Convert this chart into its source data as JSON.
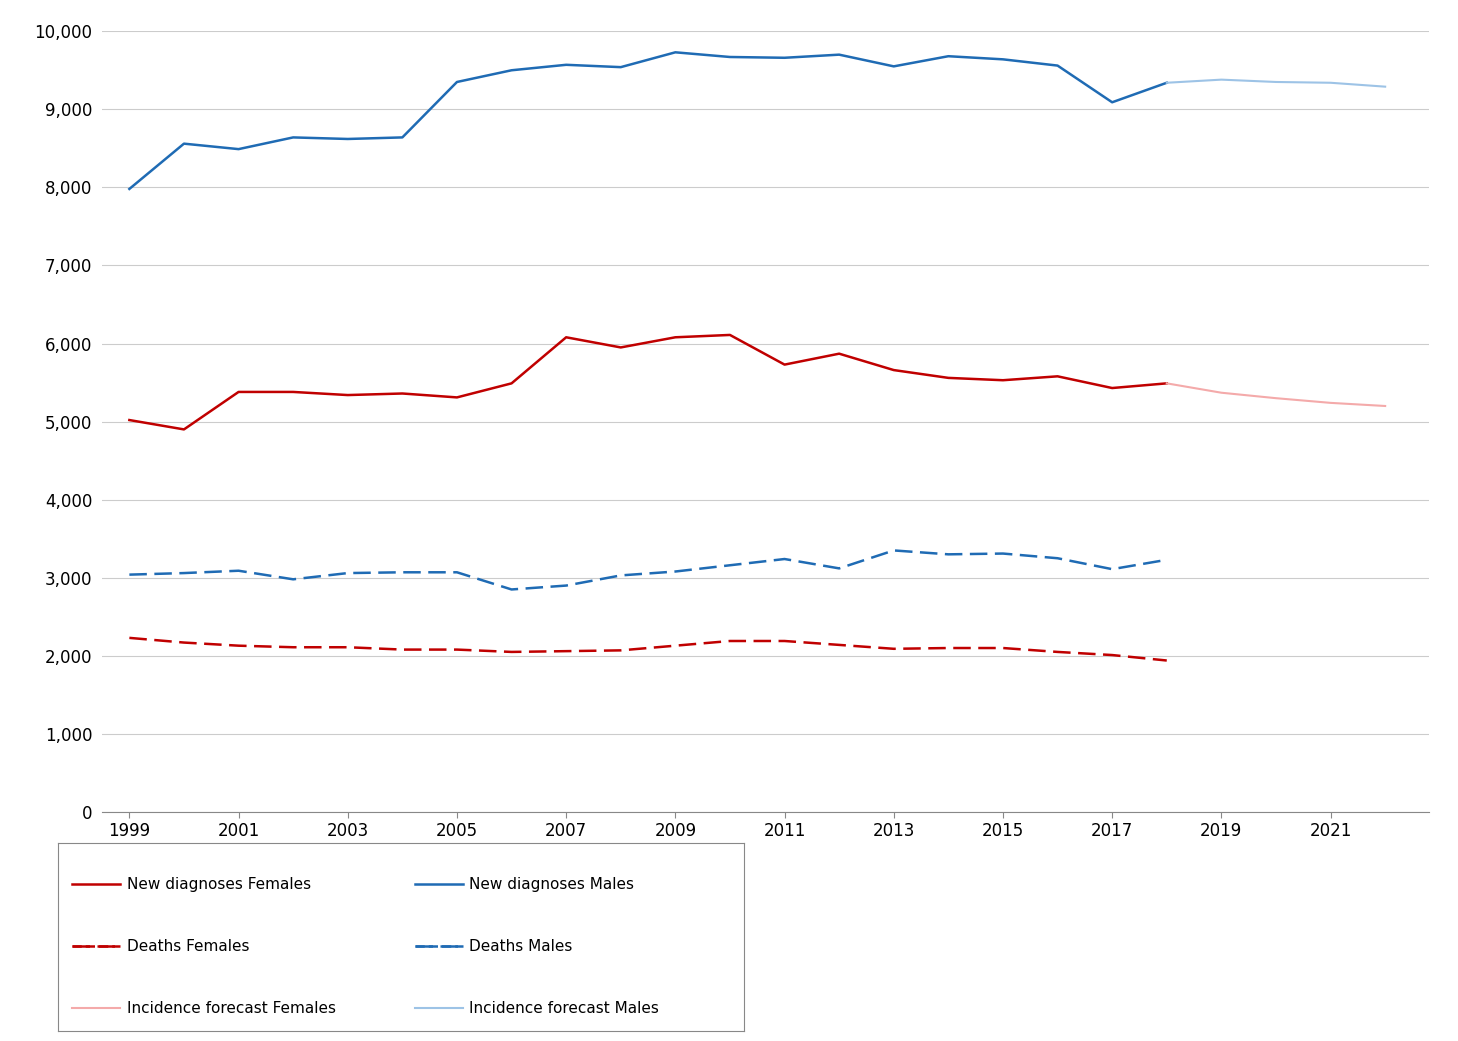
{
  "new_diag_females_years": [
    1999,
    2000,
    2001,
    2002,
    2003,
    2004,
    2005,
    2006,
    2007,
    2008,
    2009,
    2010,
    2011,
    2012,
    2013,
    2014,
    2015,
    2016,
    2017,
    2018
  ],
  "new_diag_females_vals": [
    5020,
    4900,
    5380,
    5380,
    5340,
    5360,
    5310,
    5490,
    6080,
    5950,
    6080,
    6110,
    5730,
    5870,
    5660,
    5560,
    5530,
    5580,
    5430,
    5490
  ],
  "new_diag_males_years": [
    1999,
    2000,
    2001,
    2002,
    2003,
    2004,
    2005,
    2006,
    2007,
    2008,
    2009,
    2010,
    2011,
    2012,
    2013,
    2014,
    2015,
    2016,
    2017,
    2018
  ],
  "new_diag_males_vals": [
    7980,
    8560,
    8490,
    8640,
    8620,
    8640,
    9350,
    9500,
    9570,
    9540,
    9730,
    9670,
    9660,
    9700,
    9550,
    9680,
    9640,
    9560,
    9090,
    9340
  ],
  "deaths_females_years": [
    1999,
    2000,
    2001,
    2002,
    2003,
    2004,
    2005,
    2006,
    2007,
    2008,
    2009,
    2010,
    2011,
    2012,
    2013,
    2014,
    2015,
    2016,
    2017,
    2018
  ],
  "deaths_females_vals": [
    2230,
    2170,
    2130,
    2110,
    2110,
    2080,
    2080,
    2050,
    2060,
    2070,
    2130,
    2190,
    2190,
    2140,
    2090,
    2100,
    2100,
    2050,
    2010,
    1940
  ],
  "deaths_males_years": [
    1999,
    2000,
    2001,
    2002,
    2003,
    2004,
    2005,
    2006,
    2007,
    2008,
    2009,
    2010,
    2011,
    2012,
    2013,
    2014,
    2015,
    2016,
    2017,
    2018
  ],
  "deaths_males_vals": [
    3040,
    3060,
    3090,
    2980,
    3060,
    3070,
    3070,
    2850,
    2900,
    3030,
    3080,
    3160,
    3240,
    3120,
    3350,
    3300,
    3310,
    3250,
    3110,
    3230
  ],
  "forecast_females_years": [
    2018,
    2019,
    2020,
    2021,
    2022
  ],
  "forecast_females_vals": [
    5490,
    5370,
    5300,
    5240,
    5200
  ],
  "forecast_males_years": [
    2018,
    2019,
    2020,
    2021,
    2022
  ],
  "forecast_males_vals": [
    9340,
    9380,
    9350,
    9340,
    9290
  ],
  "color_females": "#C00000",
  "color_males": "#1F6BB4",
  "color_forecast_females": "#F4AAAA",
  "color_forecast_males": "#9DC3E6",
  "ylim": [
    0,
    10000
  ],
  "yticks": [
    0,
    1000,
    2000,
    3000,
    4000,
    5000,
    6000,
    7000,
    8000,
    9000,
    10000
  ],
  "xlim_min": 1998.5,
  "xlim_max": 2022.8,
  "xticks": [
    1999,
    2001,
    2003,
    2005,
    2007,
    2009,
    2011,
    2013,
    2015,
    2017,
    2019,
    2021
  ],
  "grid_color": "#CCCCCC",
  "background_color": "#FFFFFF",
  "linewidth": 1.8,
  "forecast_linewidth": 1.5
}
